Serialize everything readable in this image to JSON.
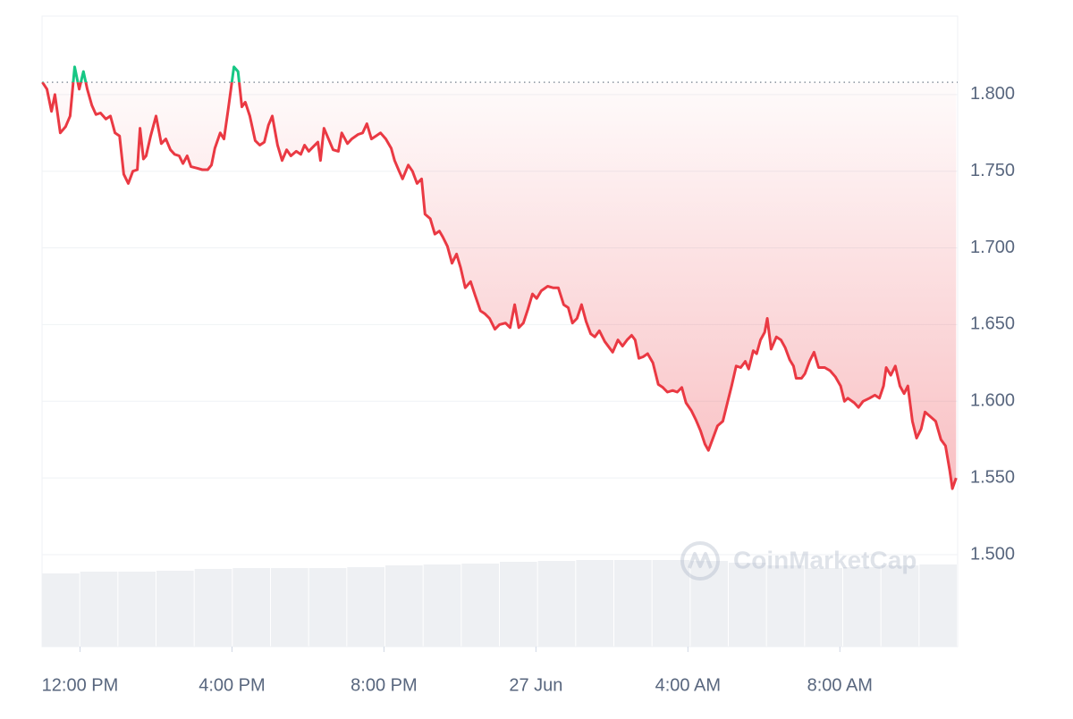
{
  "chart_data": {
    "type": "line",
    "watermark": "CoinMarketCap",
    "xlim": [
      -1,
      23.1
    ],
    "xticks": [
      {
        "value": 0,
        "label": "12:00 PM"
      },
      {
        "value": 4,
        "label": "4:00 PM"
      },
      {
        "value": 8,
        "label": "8:00 PM"
      },
      {
        "value": 12,
        "label": "27 Jun"
      },
      {
        "value": 16,
        "label": "4:00 AM"
      },
      {
        "value": 20,
        "label": "8:00 AM"
      }
    ],
    "ylim": [
      1.44,
      1.85
    ],
    "yticks": [
      {
        "value": 1.5,
        "label": "1.500"
      },
      {
        "value": 1.55,
        "label": "1.550"
      },
      {
        "value": 1.6,
        "label": "1.600"
      },
      {
        "value": 1.65,
        "label": "1.650"
      },
      {
        "value": 1.7,
        "label": "1.700"
      },
      {
        "value": 1.75,
        "label": "1.750"
      },
      {
        "value": 1.8,
        "label": "1.800"
      }
    ],
    "grid": true,
    "baseline": 1.808,
    "up_color": "#16c784",
    "down_color": "#ea3943",
    "volume_lim": [
      0,
      120
    ],
    "volume_color": "#eef0f3",
    "volume": [
      82,
      84,
      84,
      85,
      87,
      88,
      88,
      88,
      89,
      91,
      92,
      93,
      95,
      96,
      97,
      97,
      97,
      96,
      94,
      91,
      88,
      89,
      91,
      92
    ],
    "series": [
      {
        "x": [
          -0.99,
          -0.87,
          -0.75,
          -0.66,
          -0.52,
          -0.38,
          -0.26,
          -0.14,
          -0.02,
          0.09,
          0.19,
          0.31,
          0.42,
          0.54,
          0.68,
          0.8,
          0.92,
          1.04,
          1.15,
          1.27,
          1.39,
          1.51,
          1.58,
          1.67,
          1.74,
          1.86,
          2.0,
          2.14,
          2.26,
          2.38,
          2.49,
          2.61,
          2.71,
          2.82,
          2.92,
          3.08,
          3.22,
          3.36,
          3.46,
          3.55,
          3.69,
          3.79,
          3.91,
          4.05,
          4.16,
          4.26,
          4.35,
          4.47,
          4.61,
          4.73,
          4.85,
          4.96,
          5.06,
          5.2,
          5.32,
          5.44,
          5.55,
          5.69,
          5.81,
          5.91,
          6.02,
          6.14,
          6.26,
          6.33,
          6.42,
          6.54,
          6.66,
          6.8,
          6.89,
          7.04,
          7.15,
          7.32,
          7.44,
          7.55,
          7.67,
          7.79,
          7.91,
          8.05,
          8.19,
          8.28,
          8.4,
          8.49,
          8.64,
          8.75,
          8.87,
          8.99,
          9.08,
          9.22,
          9.34,
          9.46,
          9.55,
          9.67,
          9.79,
          9.91,
          10.02,
          10.14,
          10.28,
          10.4,
          10.54,
          10.66,
          10.78,
          10.92,
          11.04,
          11.2,
          11.32,
          11.44,
          11.55,
          11.67,
          11.79,
          11.91,
          12.02,
          12.14,
          12.31,
          12.45,
          12.59,
          12.73,
          12.85,
          12.96,
          13.08,
          13.2,
          13.32,
          13.44,
          13.55,
          13.67,
          13.81,
          13.93,
          14.02,
          14.16,
          14.28,
          14.4,
          14.52,
          14.61,
          14.71,
          14.82,
          14.94,
          15.08,
          15.22,
          15.34,
          15.46,
          15.6,
          15.72,
          15.84,
          15.95,
          16.09,
          16.21,
          16.33,
          16.45,
          16.54,
          16.66,
          16.78,
          16.92,
          17.04,
          17.15,
          17.27,
          17.39,
          17.51,
          17.6,
          17.72,
          17.81,
          17.91,
          18.02,
          18.09,
          18.19,
          18.33,
          18.45,
          18.56,
          18.68,
          18.78,
          18.85,
          18.99,
          19.08,
          19.2,
          19.32,
          19.44,
          19.6,
          19.74,
          19.88,
          20.02,
          20.12,
          20.21,
          20.38,
          20.49,
          20.61,
          20.78,
          20.92,
          21.04,
          21.15,
          21.22,
          21.34,
          21.46,
          21.58,
          21.69,
          21.79,
          21.91,
          22.02,
          22.14,
          22.24,
          22.38,
          22.52,
          22.66,
          22.78,
          22.89,
          22.96,
          23.06
        ],
        "values": [
          1.808,
          1.8035,
          1.789,
          1.8,
          1.775,
          1.779,
          1.786,
          1.818,
          1.8035,
          1.815,
          1.8035,
          1.793,
          1.787,
          1.788,
          1.784,
          1.786,
          1.775,
          1.773,
          1.748,
          1.742,
          1.75,
          1.751,
          1.778,
          1.758,
          1.76,
          1.773,
          1.786,
          1.768,
          1.771,
          1.764,
          1.761,
          1.76,
          1.755,
          1.76,
          1.753,
          1.752,
          1.751,
          1.751,
          1.754,
          1.765,
          1.775,
          1.771,
          1.792,
          1.818,
          1.815,
          1.792,
          1.795,
          1.786,
          1.77,
          1.767,
          1.769,
          1.78,
          1.786,
          1.767,
          1.757,
          1.764,
          1.76,
          1.763,
          1.761,
          1.767,
          1.763,
          1.766,
          1.769,
          1.757,
          1.778,
          1.771,
          1.764,
          1.763,
          1.775,
          1.768,
          1.771,
          1.774,
          1.775,
          1.781,
          1.771,
          1.773,
          1.775,
          1.771,
          1.765,
          1.757,
          1.75,
          1.745,
          1.754,
          1.75,
          1.742,
          1.745,
          1.722,
          1.719,
          1.709,
          1.711,
          1.707,
          1.701,
          1.69,
          1.696,
          1.687,
          1.674,
          1.678,
          1.669,
          1.659,
          1.657,
          1.654,
          1.647,
          1.65,
          1.651,
          1.648,
          1.663,
          1.648,
          1.651,
          1.66,
          1.67,
          1.667,
          1.672,
          1.675,
          1.674,
          1.674,
          1.663,
          1.661,
          1.651,
          1.654,
          1.663,
          1.652,
          1.644,
          1.642,
          1.646,
          1.639,
          1.635,
          1.632,
          1.64,
          1.636,
          1.64,
          1.643,
          1.64,
          1.628,
          1.629,
          1.631,
          1.625,
          1.611,
          1.609,
          1.606,
          1.607,
          1.606,
          1.609,
          1.599,
          1.594,
          1.588,
          1.581,
          1.572,
          1.568,
          1.576,
          1.584,
          1.587,
          1.599,
          1.61,
          1.623,
          1.622,
          1.626,
          1.621,
          1.633,
          1.631,
          1.64,
          1.645,
          1.654,
          1.634,
          1.642,
          1.64,
          1.635,
          1.627,
          1.623,
          1.615,
          1.615,
          1.618,
          1.626,
          1.632,
          1.622,
          1.622,
          1.62,
          1.616,
          1.61,
          1.6,
          1.602,
          1.599,
          1.596,
          1.6,
          1.602,
          1.604,
          1.602,
          1.61,
          1.622,
          1.617,
          1.623,
          1.61,
          1.605,
          1.61,
          1.587,
          1.576,
          1.582,
          1.593,
          1.59,
          1.587,
          1.575,
          1.571,
          1.555,
          1.543,
          1.55
        ]
      }
    ]
  }
}
